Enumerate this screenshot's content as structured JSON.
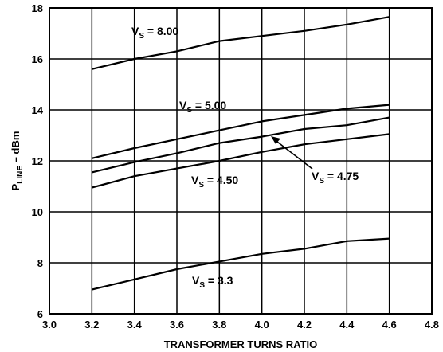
{
  "chart_data": {
    "type": "line",
    "title": "",
    "xlabel": "TRANSFORMER TURNS RATIO",
    "ylabel": {
      "main": "P",
      "sub": "LINE",
      "suffix": " – dBm"
    },
    "xlim": [
      3.0,
      4.8
    ],
    "ylim": [
      6,
      18
    ],
    "xticks": [
      "3.0",
      "3.2",
      "3.4",
      "3.6",
      "3.8",
      "4.0",
      "4.2",
      "4.4",
      "4.6",
      "4.8"
    ],
    "yticks": [
      "6",
      "8",
      "10",
      "12",
      "14",
      "16",
      "18"
    ],
    "grid": true,
    "legend": "none",
    "x": [
      3.2,
      3.4,
      3.6,
      3.8,
      4.0,
      4.2,
      4.4,
      4.6
    ],
    "series": [
      {
        "name": "V_S = 8.00",
        "label": {
          "main": "V",
          "sub": "S",
          "rest": " = 8.00"
        },
        "values": [
          15.6,
          16.0,
          16.3,
          16.7,
          16.9,
          17.1,
          17.35,
          17.65
        ]
      },
      {
        "name": "V_S = 5.00",
        "label": {
          "main": "V",
          "sub": "S",
          "rest": " = 5.00"
        },
        "values": [
          12.1,
          12.5,
          12.85,
          13.2,
          13.55,
          13.8,
          14.05,
          14.2
        ]
      },
      {
        "name": "V_S = 4.75",
        "label": {
          "main": "V",
          "sub": "S",
          "rest": " = 4.75"
        },
        "values": [
          11.55,
          11.95,
          12.3,
          12.7,
          12.95,
          13.25,
          13.4,
          13.7
        ]
      },
      {
        "name": "V_S = 4.50",
        "label": {
          "main": "V",
          "sub": "S",
          "rest": " = 4.50"
        },
        "values": [
          10.95,
          11.4,
          11.7,
          12.0,
          12.35,
          12.65,
          12.85,
          13.05
        ]
      },
      {
        "name": "V_S = 3.3",
        "label": {
          "main": "V",
          "sub": "S",
          "rest": " = 3.3"
        },
        "values": [
          6.95,
          7.35,
          7.75,
          8.05,
          8.35,
          8.55,
          8.85,
          8.95
        ]
      }
    ]
  }
}
